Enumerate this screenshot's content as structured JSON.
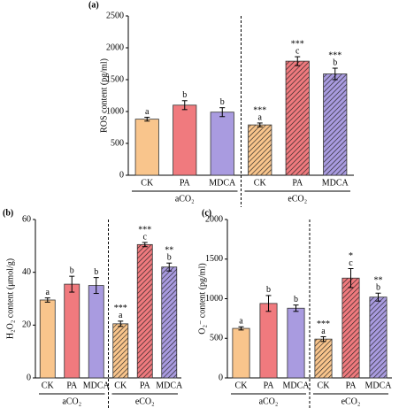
{
  "chart_data": [
    {
      "type": "bar",
      "panel_label": "(a)",
      "ylabel": "ROS content (pg/ml)",
      "categories": [
        "CK",
        "PA",
        "MDCA",
        "CK",
        "PA",
        "MDCA"
      ],
      "groups": [
        "aCO₂",
        "eCO₂"
      ],
      "values": [
        880,
        1100,
        990,
        790,
        1790,
        1590
      ],
      "errors": [
        30,
        70,
        70,
        30,
        70,
        90
      ],
      "letters": [
        "a",
        "b",
        "b",
        "a",
        "c",
        "b"
      ],
      "significance": [
        null,
        null,
        null,
        "***",
        "***",
        "***"
      ],
      "colors": [
        "#f9c58c",
        "#f07a7e",
        "#a99be0",
        "#f9c58c",
        "#f07a7e",
        "#a99be0"
      ],
      "hatched": [
        false,
        false,
        false,
        true,
        true,
        true
      ],
      "ylim": [
        0,
        2500
      ],
      "yticks": [
        0,
        500,
        1000,
        1500,
        2000,
        2500
      ]
    },
    {
      "type": "bar",
      "panel_label": "(b)",
      "ylabel": "H₂O₂ content (μmol/g)",
      "categories": [
        "CK",
        "PA",
        "MDCA",
        "CK",
        "PA",
        "MDCA"
      ],
      "groups": [
        "aCO₂",
        "eCO₂"
      ],
      "values": [
        29.5,
        35.5,
        35,
        20.5,
        50.5,
        42
      ],
      "errors": [
        0.8,
        3,
        3,
        1,
        0.8,
        1.5
      ],
      "letters": [
        "a",
        "b",
        "b",
        "a",
        "c",
        "b"
      ],
      "significance": [
        null,
        null,
        null,
        "***",
        "***",
        "**"
      ],
      "colors": [
        "#f9c58c",
        "#f07a7e",
        "#a99be0",
        "#f9c58c",
        "#f07a7e",
        "#a99be0"
      ],
      "hatched": [
        false,
        false,
        false,
        true,
        true,
        true
      ],
      "ylim": [
        0,
        60
      ],
      "yticks": [
        0,
        20,
        40,
        60
      ]
    },
    {
      "type": "bar",
      "panel_label": "(c)",
      "ylabel": "O₂⁻ content (pg/ml)",
      "categories": [
        "CK",
        "PA",
        "MDCA",
        "CK",
        "PA",
        "MDCA"
      ],
      "groups": [
        "aCO₂",
        "eCO₂"
      ],
      "values": [
        625,
        940,
        880,
        490,
        1260,
        1020
      ],
      "errors": [
        20,
        100,
        40,
        30,
        120,
        50
      ],
      "letters": [
        "a",
        "b",
        "b",
        "a",
        "c",
        "b"
      ],
      "significance": [
        null,
        null,
        null,
        "***",
        "*",
        "**"
      ],
      "colors": [
        "#f9c58c",
        "#f07a7e",
        "#a99be0",
        "#f9c58c",
        "#f07a7e",
        "#a99be0"
      ],
      "hatched": [
        false,
        false,
        false,
        true,
        true,
        true
      ],
      "ylim": [
        0,
        2000
      ],
      "yticks": [
        0,
        500,
        1000,
        1500,
        2000
      ]
    }
  ]
}
